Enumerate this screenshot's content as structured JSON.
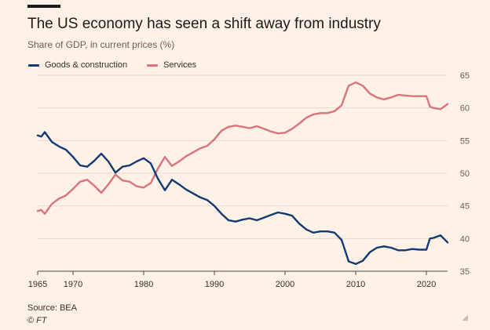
{
  "header": {
    "title": "The US economy has seen a shift away from industry",
    "subtitle": "Share of GDP, in current prices (%)"
  },
  "footer": {
    "source": "Source: BEA",
    "copyright": "© FT"
  },
  "colors": {
    "background": "#fff1e5",
    "goods": "#0f3a73",
    "services": "#d9737c",
    "grid": "#e7d9cd",
    "axis": "#4d4845"
  },
  "chart_data": {
    "type": "line",
    "title": "The US economy has seen a shift away from industry",
    "subtitle": "Share of GDP, in current prices (%)",
    "xlabel": "",
    "ylabel": "",
    "xlim": [
      1965,
      2023
    ],
    "ylim": [
      35,
      65
    ],
    "x_ticks": [
      1965,
      1970,
      1980,
      1990,
      2000,
      2010,
      2020
    ],
    "y_ticks": [
      35,
      40,
      45,
      50,
      55,
      60,
      65
    ],
    "y_axis_side": "right",
    "grid": true,
    "legend_position": "top-left",
    "series": [
      {
        "name": "Goods & construction",
        "color": "#0f3a73",
        "points": [
          [
            1965,
            55.8
          ],
          [
            1965.5,
            55.6
          ],
          [
            1966,
            56.3
          ],
          [
            1967,
            54.8
          ],
          [
            1968,
            54.1
          ],
          [
            1969,
            53.6
          ],
          [
            1970,
            52.5
          ],
          [
            1971,
            51.2
          ],
          [
            1972,
            51.0
          ],
          [
            1973,
            51.9
          ],
          [
            1974,
            53.0
          ],
          [
            1975,
            51.8
          ],
          [
            1976,
            50.1
          ],
          [
            1977,
            51.0
          ],
          [
            1978,
            51.2
          ],
          [
            1979,
            51.8
          ],
          [
            1980,
            52.3
          ],
          [
            1981,
            51.5
          ],
          [
            1982,
            49.2
          ],
          [
            1983,
            47.4
          ],
          [
            1984,
            49.0
          ],
          [
            1985,
            48.3
          ],
          [
            1986,
            47.5
          ],
          [
            1987,
            46.9
          ],
          [
            1988,
            46.3
          ],
          [
            1989,
            45.9
          ],
          [
            1990,
            45.0
          ],
          [
            1991,
            43.8
          ],
          [
            1992,
            42.8
          ],
          [
            1993,
            42.6
          ],
          [
            1994,
            42.9
          ],
          [
            1995,
            43.1
          ],
          [
            1996,
            42.8
          ],
          [
            1997,
            43.2
          ],
          [
            1998,
            43.6
          ],
          [
            1999,
            44.0
          ],
          [
            2000,
            43.8
          ],
          [
            2001,
            43.5
          ],
          [
            2002,
            42.3
          ],
          [
            2003,
            41.4
          ],
          [
            2004,
            40.9
          ],
          [
            2005,
            41.1
          ],
          [
            2006,
            41.1
          ],
          [
            2007,
            40.9
          ],
          [
            2008,
            39.8
          ],
          [
            2009,
            36.5
          ],
          [
            2010,
            36.1
          ],
          [
            2011,
            36.6
          ],
          [
            2012,
            37.9
          ],
          [
            2013,
            38.6
          ],
          [
            2014,
            38.8
          ],
          [
            2015,
            38.6
          ],
          [
            2016,
            38.2
          ],
          [
            2017,
            38.2
          ],
          [
            2018,
            38.4
          ],
          [
            2019,
            38.3
          ],
          [
            2020,
            38.3
          ],
          [
            2020.5,
            40.0
          ],
          [
            2021,
            40.1
          ],
          [
            2022,
            40.5
          ],
          [
            2023,
            39.4
          ]
        ]
      },
      {
        "name": "Services",
        "color": "#d9737c",
        "points": [
          [
            1965,
            44.2
          ],
          [
            1965.5,
            44.4
          ],
          [
            1966,
            43.8
          ],
          [
            1967,
            45.3
          ],
          [
            1968,
            46.1
          ],
          [
            1969,
            46.6
          ],
          [
            1970,
            47.6
          ],
          [
            1971,
            48.7
          ],
          [
            1972,
            49.0
          ],
          [
            1973,
            48.1
          ],
          [
            1974,
            47.0
          ],
          [
            1975,
            48.3
          ],
          [
            1976,
            49.8
          ],
          [
            1977,
            48.9
          ],
          [
            1978,
            48.7
          ],
          [
            1979,
            48.0
          ],
          [
            1980,
            47.8
          ],
          [
            1981,
            48.5
          ],
          [
            1982,
            50.7
          ],
          [
            1983,
            52.5
          ],
          [
            1984,
            51.1
          ],
          [
            1985,
            51.8
          ],
          [
            1986,
            52.6
          ],
          [
            1987,
            53.2
          ],
          [
            1988,
            53.8
          ],
          [
            1989,
            54.2
          ],
          [
            1990,
            55.2
          ],
          [
            1991,
            56.5
          ],
          [
            1992,
            57.1
          ],
          [
            1993,
            57.3
          ],
          [
            1994,
            57.1
          ],
          [
            1995,
            56.9
          ],
          [
            1996,
            57.2
          ],
          [
            1997,
            56.8
          ],
          [
            1998,
            56.4
          ],
          [
            1999,
            56.1
          ],
          [
            2000,
            56.2
          ],
          [
            2001,
            56.8
          ],
          [
            2002,
            57.6
          ],
          [
            2003,
            58.5
          ],
          [
            2004,
            59.0
          ],
          [
            2005,
            59.2
          ],
          [
            2006,
            59.2
          ],
          [
            2007,
            59.5
          ],
          [
            2008,
            60.4
          ],
          [
            2009,
            63.4
          ],
          [
            2010,
            63.9
          ],
          [
            2011,
            63.4
          ],
          [
            2012,
            62.2
          ],
          [
            2013,
            61.6
          ],
          [
            2014,
            61.3
          ],
          [
            2015,
            61.6
          ],
          [
            2016,
            62.0
          ],
          [
            2017,
            61.9
          ],
          [
            2018,
            61.8
          ],
          [
            2019,
            61.8
          ],
          [
            2020,
            61.8
          ],
          [
            2020.5,
            60.2
          ],
          [
            2021,
            60.0
          ],
          [
            2022,
            59.8
          ],
          [
            2023,
            60.6
          ]
        ]
      }
    ]
  }
}
